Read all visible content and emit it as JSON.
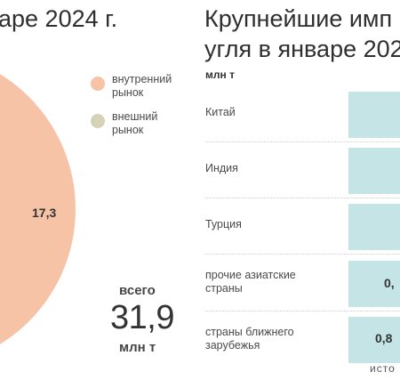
{
  "left": {
    "title": "аре 2024 г.",
    "legend": [
      {
        "label": "внутренний рынок",
        "color": "#f6c3a7"
      },
      {
        "label": "внешний рынок",
        "color": "#d6d2b8"
      }
    ],
    "total": {
      "word": "всего",
      "value": "31,9",
      "unit": "млн т"
    }
  },
  "right": {
    "title_line1": "Крупнейшие имп",
    "title_line2": "угля в январе 202",
    "unit": "млн т",
    "source": "исто"
  },
  "chart_data": [
    {
      "type": "pie",
      "title": "",
      "slices": [
        {
          "label": "внутренний рынок",
          "value": 17.3,
          "value_label": "17,3",
          "color": "#f6c3a7"
        }
      ]
    },
    {
      "type": "bar",
      "orientation": "horizontal",
      "title": "",
      "unit": "млн т",
      "categories": [
        "Китай",
        "Индия",
        "Турция",
        "прочие азиатские страны",
        "страны ближнего зарубежья"
      ],
      "value_labels": [
        "",
        "",
        "",
        "0,",
        "0,8"
      ],
      "color": "#c4e4e6"
    }
  ]
}
